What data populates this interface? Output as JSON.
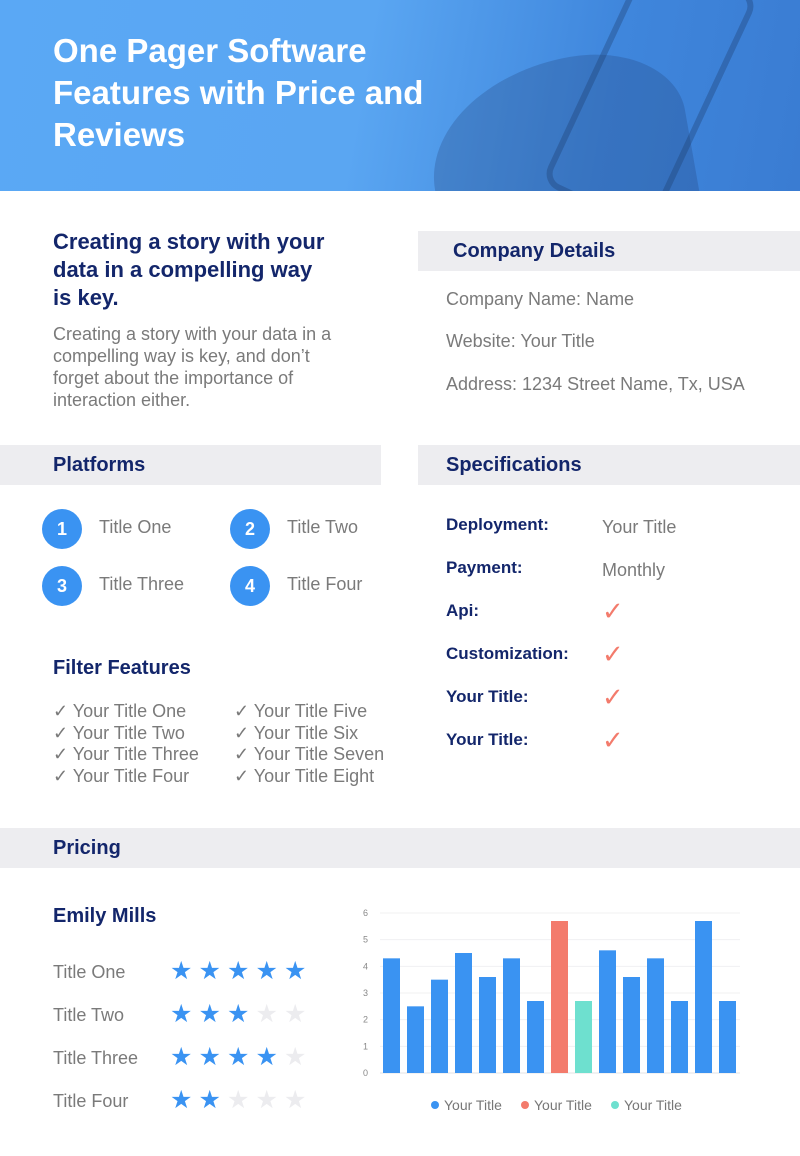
{
  "header": {
    "title": "One Pager Software Features with Price and Reviews"
  },
  "intro": {
    "heading": "Creating a story with your data in a compelling way is key.",
    "body": "Creating a story with your data in a compelling way is key, and don’t forget about the importance of interaction either."
  },
  "company": {
    "title": "Company Details",
    "lines": [
      "Company Name: Name",
      "Website: Your Title",
      "Address: 1234 Street Name, Tx, USA"
    ]
  },
  "platforms": {
    "title": "Platforms",
    "items": [
      {
        "num": "1",
        "label": "Title One"
      },
      {
        "num": "2",
        "label": "Title Two"
      },
      {
        "num": "3",
        "label": "Title Three"
      },
      {
        "num": "4",
        "label": "Title Four"
      }
    ]
  },
  "filter": {
    "title": "Filter Features",
    "items": [
      "✓ Your Title One",
      "✓ Your Title Two",
      "✓ Your Title Three",
      "✓ Your Title Four",
      "✓ Your Title Five",
      "✓ Your Title Six",
      "✓ Your Title Seven",
      "✓ Your Title Eight"
    ]
  },
  "specs": {
    "title": "Specifications",
    "rows": [
      {
        "label": "Deployment:",
        "value": "Your Title"
      },
      {
        "label": "Payment:",
        "value": "Monthly"
      },
      {
        "label": "Api:",
        "value": "✓"
      },
      {
        "label": "Customization:",
        "value": "✓"
      },
      {
        "label": "Your Title:",
        "value": "✓"
      },
      {
        "label": "Your Title:",
        "value": "✓"
      }
    ]
  },
  "pricing": {
    "title": "Pricing",
    "reviewer": "Emily Mills",
    "ratings": [
      {
        "label": "Title One",
        "stars": 5
      },
      {
        "label": "Title Two",
        "stars": 3
      },
      {
        "label": "Title Three",
        "stars": 4
      },
      {
        "label": "Title Four",
        "stars": 2
      }
    ]
  },
  "colors": {
    "primary": "#3a93f2",
    "navy": "#13266b",
    "accent": "#f37b6c",
    "teal": "#6ee0cf"
  },
  "chart_data": {
    "type": "bar",
    "ylim": [
      0,
      6
    ],
    "yticks": [
      "0",
      "1",
      "2",
      "3",
      "4",
      "5",
      "6"
    ],
    "grid": true,
    "legend": "bottom",
    "values": [
      4.3,
      2.5,
      3.5,
      4.5,
      3.6,
      4.3,
      2.7,
      5.7,
      2.7,
      4.6,
      3.6,
      4.3,
      2.7,
      5.7,
      2.7
    ],
    "bar_series": [
      0,
      0,
      0,
      0,
      0,
      0,
      0,
      1,
      2,
      0,
      0,
      0,
      0,
      0,
      0
    ],
    "series": [
      {
        "name": "Your Title",
        "color": "#3a93f2"
      },
      {
        "name": "Your Title",
        "color": "#f37b6c"
      },
      {
        "name": "Your Title",
        "color": "#6ee0cf"
      }
    ]
  }
}
